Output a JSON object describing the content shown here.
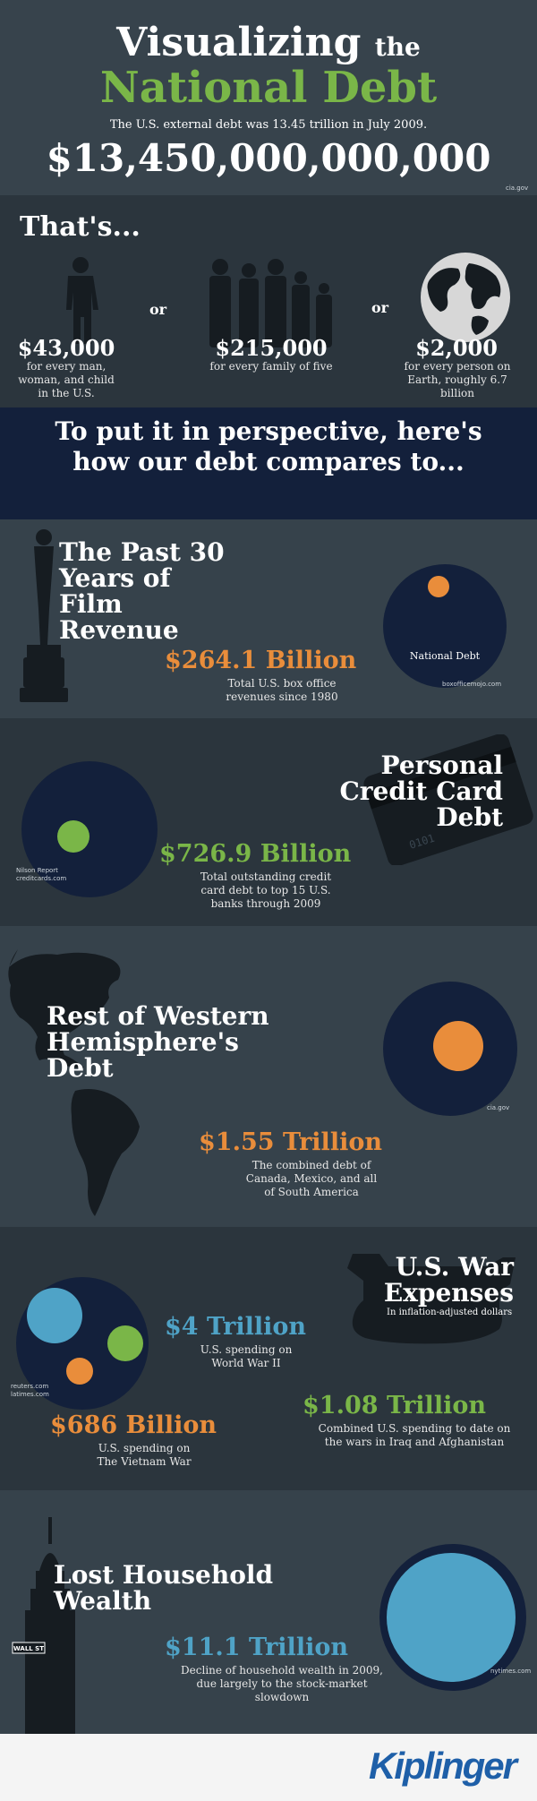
{
  "header": {
    "title_line1": "Visualizing",
    "title_the": "the",
    "title_line2": "National Debt",
    "subtitle": "The U.S. external debt was 13.45 trillion in July 2009.",
    "big_number": "$13,450,000,000,000",
    "source": "cia.gov"
  },
  "thats": {
    "heading": "That's...",
    "or": "or",
    "items": [
      {
        "amount": "$43,000",
        "desc": "for every man, woman, and child in the U.S."
      },
      {
        "amount": "$215,000",
        "desc": "for every family of five"
      },
      {
        "amount": "$2,000",
        "desc": "for every person on Earth, roughly 6.7 billion"
      }
    ]
  },
  "perspective": {
    "heading": "To put it in perspective, here's how our debt compares to..."
  },
  "film": {
    "title": "The Past 30 Years of Film Revenue",
    "amount": "$264.1 Billion",
    "desc": "Total U.S. box office revenues since 1980",
    "circle_label": "National Debt",
    "source": "boxofficemojo.com"
  },
  "credit": {
    "title": "Personal Credit Card Debt",
    "amount": "$726.9 Billion",
    "desc": "Total outstanding credit card debt to top 15 U.S. banks through 2009",
    "source_line1": "Nilson Report",
    "source_line2": "creditcards.com",
    "card_number": "0101"
  },
  "western": {
    "title": "Rest of Western Hemisphere's Debt",
    "amount": "$1.55 Trillion",
    "desc": "The combined debt of Canada, Mexico, and all of South America",
    "source": "cia.gov"
  },
  "war": {
    "title": "U.S. War Expenses",
    "subtitle": "In inflation-adjusted dollars",
    "ww2_amount": "$4 Trillion",
    "ww2_desc": "U.S. spending on World War II",
    "iraq_amount": "$1.08 Trillion",
    "iraq_desc": "Combined U.S. spending to date on the wars in Iraq and Afghanistan",
    "vietnam_amount": "$686 Billion",
    "vietnam_desc": "U.S. spending on The Vietnam War",
    "source_line1": "reuters.com",
    "source_line2": "latimes.com"
  },
  "wealth": {
    "title": "Lost Household Wealth",
    "amount": "$11.1 Trillion",
    "desc": "Decline of household wealth in 2009, due largely to the stock-market slowdown",
    "source": "nytimes.com",
    "street_sign": "WALL ST"
  },
  "footer": {
    "brand": "Kiplinger"
  },
  "colors": {
    "green": "#7ab648",
    "orange": "#e98d3b",
    "blue": "#4fa3c7",
    "navy": "#13203b",
    "bg": "#36424b"
  }
}
